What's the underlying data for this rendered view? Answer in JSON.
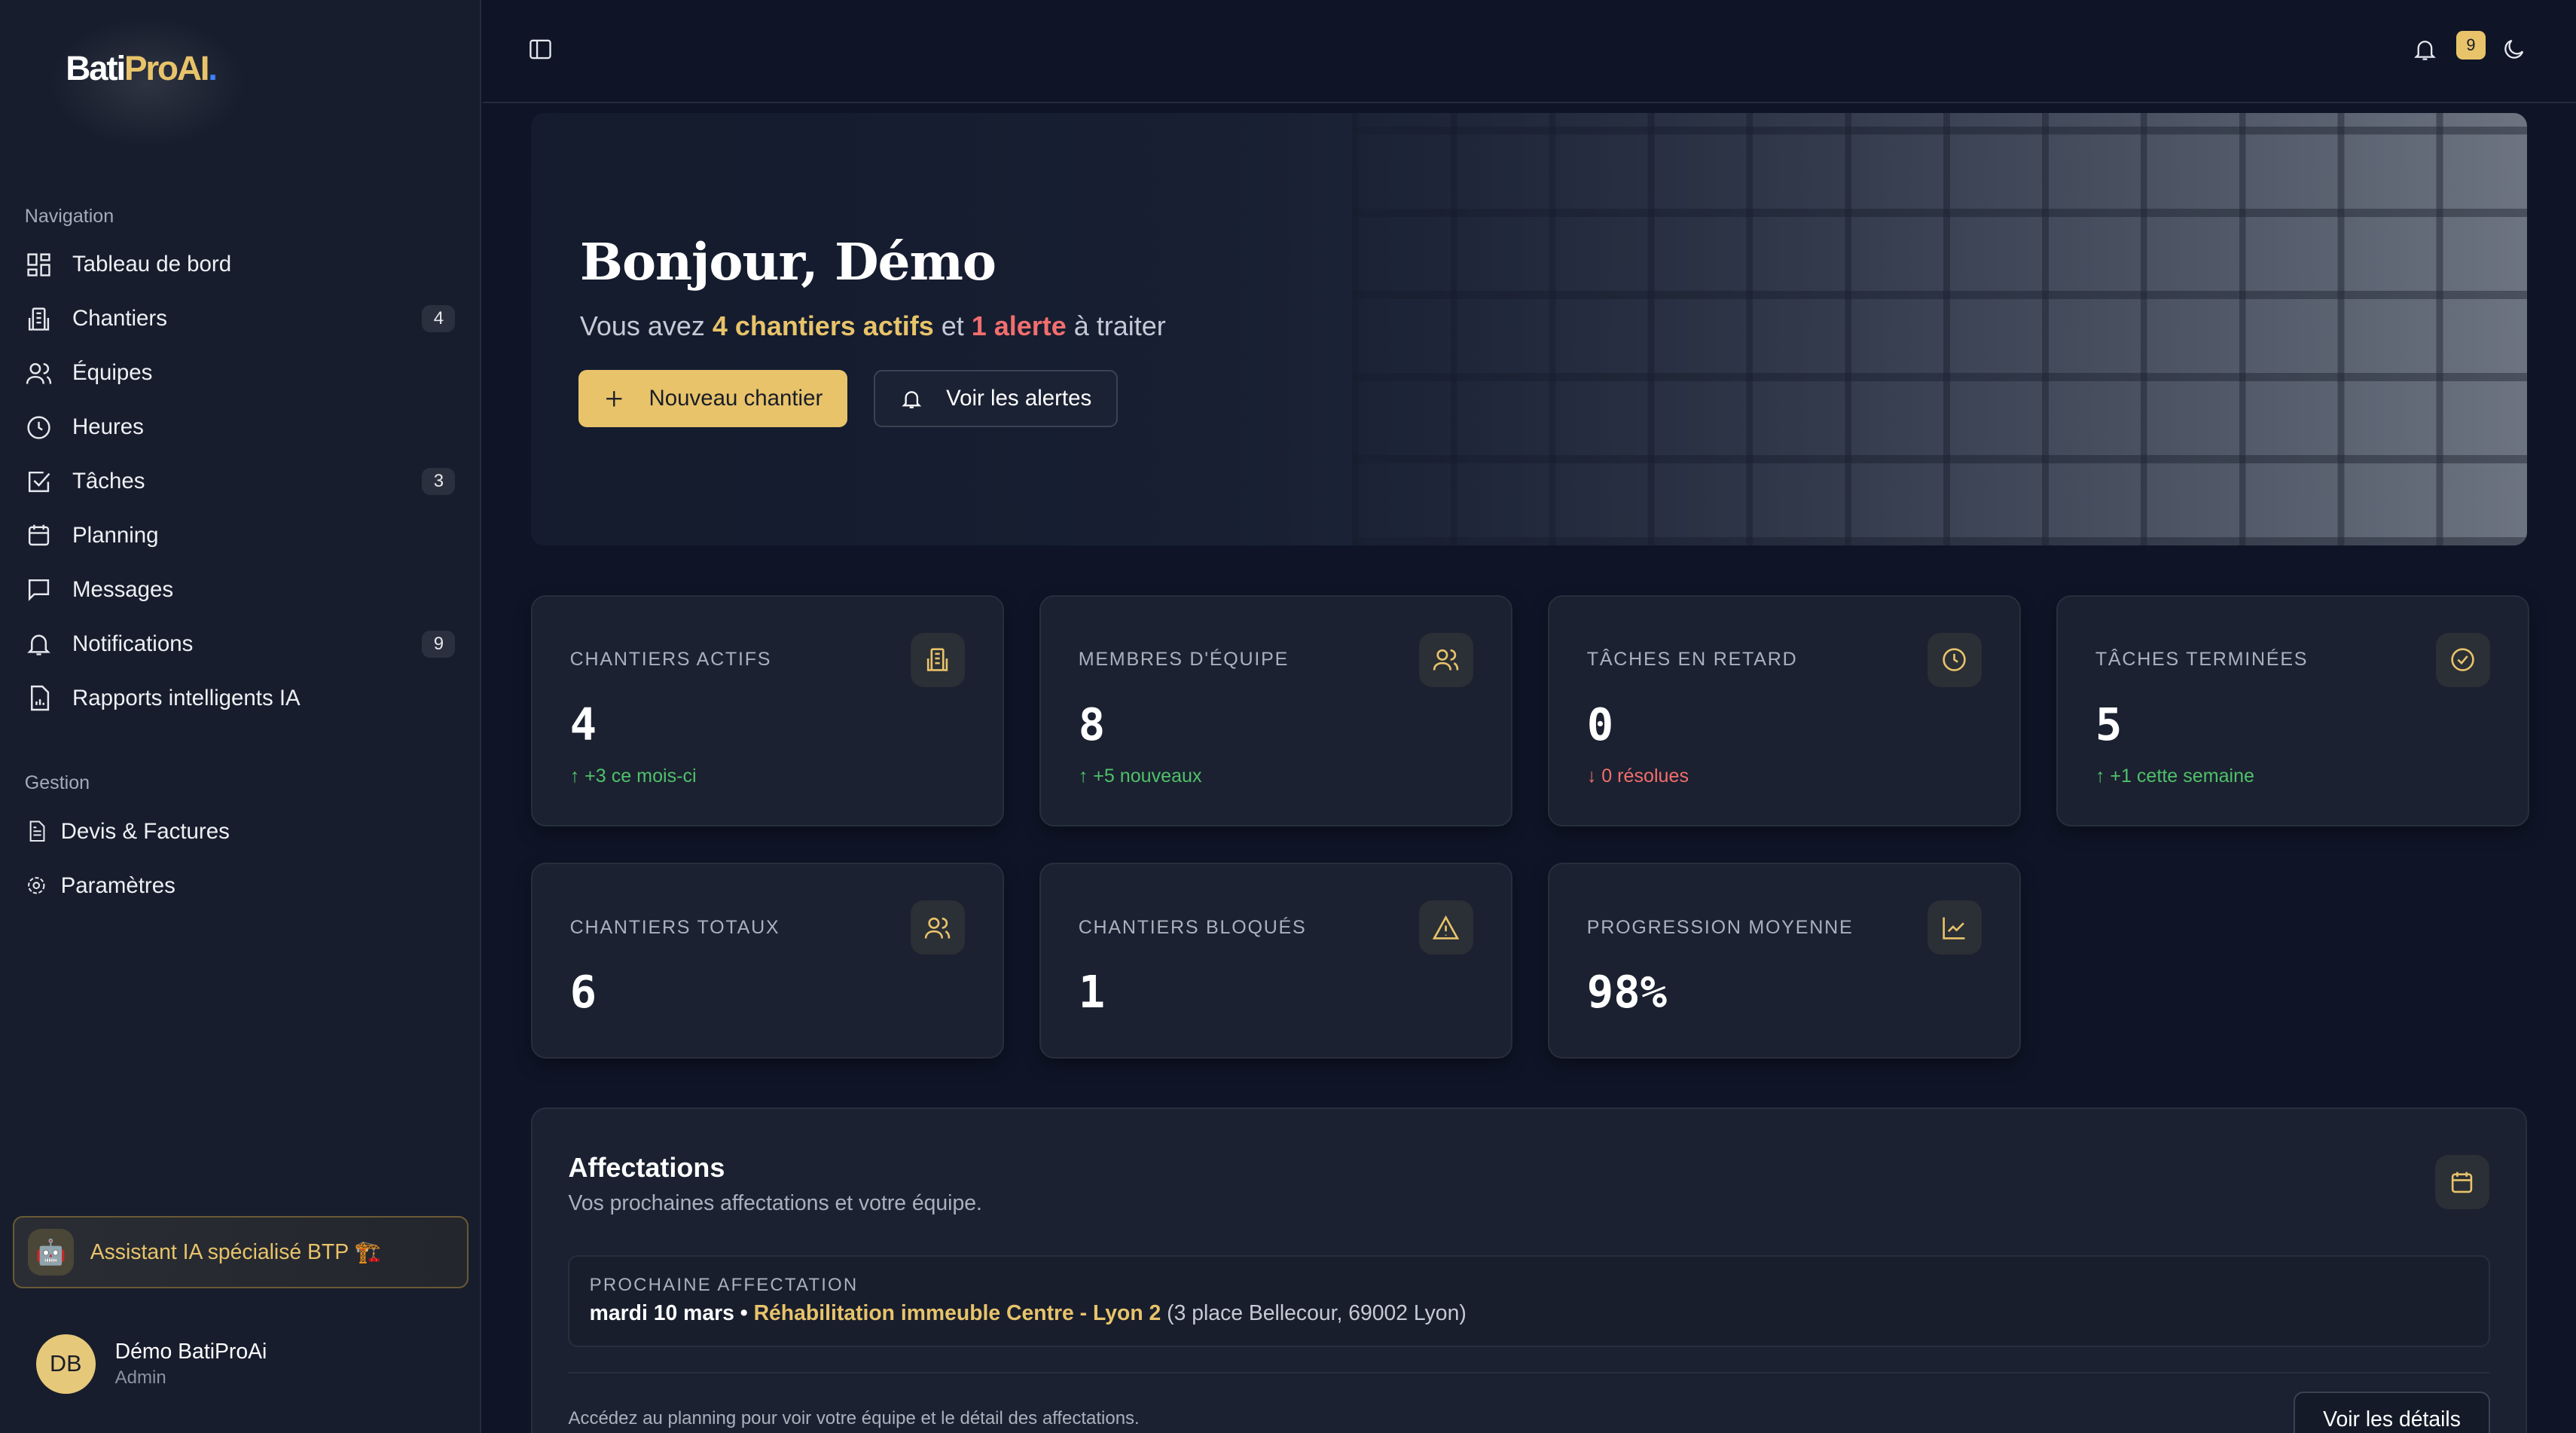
{
  "brand": {
    "logo_text": "BatiProAI."
  },
  "sidebar": {
    "nav_title": "Navigation",
    "items": [
      {
        "label": "Tableau de bord",
        "icon": "dashboard-icon"
      },
      {
        "label": "Chantiers",
        "icon": "building-icon",
        "badge": "4"
      },
      {
        "label": "Équipes",
        "icon": "users-icon"
      },
      {
        "label": "Heures",
        "icon": "clock-icon"
      },
      {
        "label": "Tâches",
        "icon": "check-square-icon",
        "badge": "3"
      },
      {
        "label": "Planning",
        "icon": "calendar-icon"
      },
      {
        "label": "Messages",
        "icon": "message-icon"
      },
      {
        "label": "Notifications",
        "icon": "bell-icon",
        "badge": "9"
      },
      {
        "label": "Rapports intelligents IA",
        "icon": "report-icon"
      }
    ],
    "gestion_title": "Gestion",
    "gestion": [
      {
        "label": "Devis & Factures",
        "icon": "file-icon"
      },
      {
        "label": "Paramètres",
        "icon": "gear-icon"
      }
    ],
    "assistant": "Assistant IA spécialisé BTP 🏗️",
    "user": {
      "initials": "DB",
      "name": "Démo BatiProAi",
      "role": "Admin"
    }
  },
  "topbar": {
    "notif_count": "9"
  },
  "hero": {
    "title": "Bonjour, Démo",
    "sub_prefix": "Vous avez ",
    "sub_active": "4 chantiers actifs",
    "sub_mid": " et ",
    "sub_alert": "1 alerte",
    "sub_suffix": " à traiter",
    "new_btn": "Nouveau chantier",
    "alerts_btn": "Voir les alertes"
  },
  "stats": [
    {
      "label": "CHANTIERS ACTIFS",
      "value": "4",
      "trend": "↑ +3 ce mois-ci",
      "dir": "up",
      "icon": "building-icon"
    },
    {
      "label": "MEMBRES D'ÉQUIPE",
      "value": "8",
      "trend": "↑ +5 nouveaux",
      "dir": "up",
      "icon": "users-icon"
    },
    {
      "label": "TÂCHES EN RETARD",
      "value": "0",
      "trend": "↓ 0 résolues",
      "dir": "down",
      "icon": "clock-icon"
    },
    {
      "label": "TÂCHES TERMINÉES",
      "value": "5",
      "trend": "↑ +1 cette semaine",
      "dir": "up",
      "icon": "check-circle-icon"
    },
    {
      "label": "CHANTIERS TOTAUX",
      "value": "6",
      "icon": "users-icon"
    },
    {
      "label": "CHANTIERS BLOQUÉS",
      "value": "1",
      "icon": "alert-triangle-icon"
    },
    {
      "label": "PROGRESSION MOYENNE",
      "value": "98%",
      "icon": "chart-line-icon"
    }
  ],
  "affectations": {
    "title": "Affectations",
    "subtitle": "Vos prochaines affectations et votre équipe.",
    "next_label": "PROCHAINE AFFECTATION",
    "date": "mardi 10 mars",
    "sep": " • ",
    "site": "Réhabilitation immeuble Centre - Lyon 2",
    "address": " (3 place Bellecour, 69002 Lyon)",
    "footer": "Accédez au planning pour voir votre équipe et le détail des affectations.",
    "details_btn": "Voir les détails"
  }
}
